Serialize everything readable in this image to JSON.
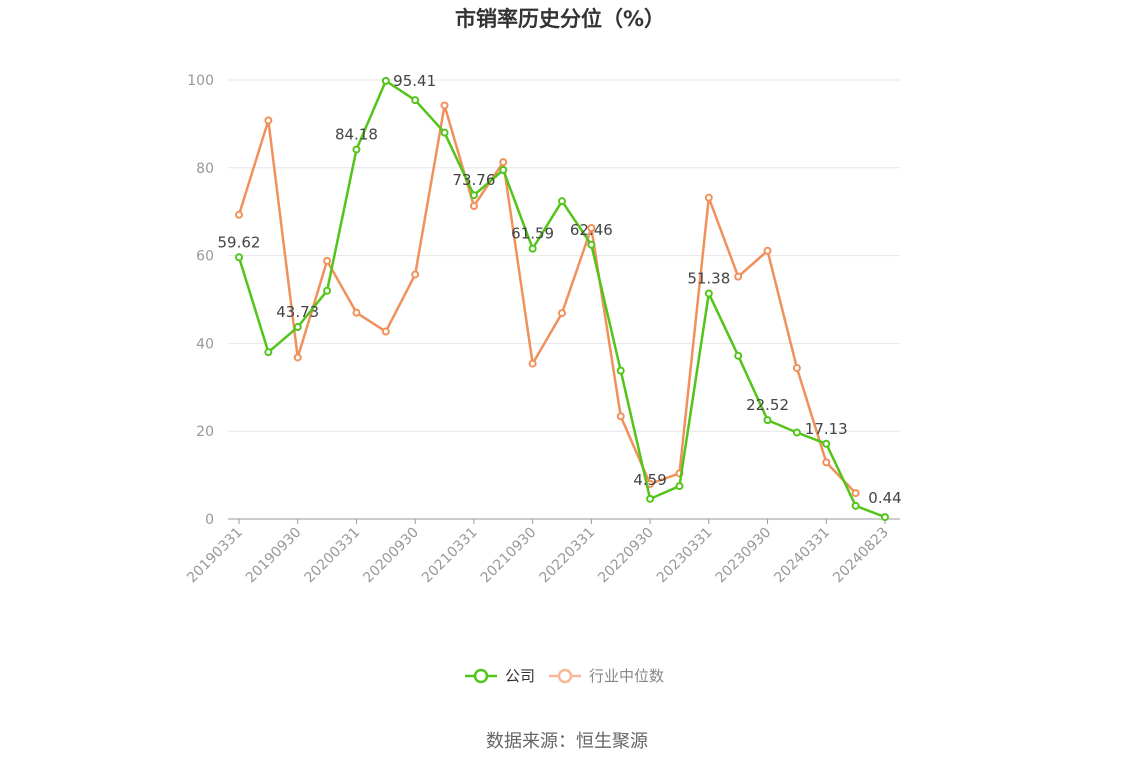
{
  "chart_data": {
    "type": "line",
    "title": "市销率历史分位（%）",
    "source": "数据来源：恒生聚源",
    "xlabel": "",
    "ylabel": "",
    "ylim": [
      0,
      100
    ],
    "yticks": [
      0,
      20,
      40,
      60,
      80,
      100
    ],
    "grid": true,
    "legend_position": "bottom",
    "x": [
      "20190331",
      "20190630",
      "20190930",
      "20191231",
      "20200331",
      "20200630",
      "20200930",
      "20201231",
      "20210331",
      "20210630",
      "20210930",
      "20211231",
      "20220331",
      "20220630",
      "20220930",
      "20221231",
      "20230331",
      "20230630",
      "20230930",
      "20231231",
      "20240331",
      "20240630",
      "20240823"
    ],
    "xtick_labels": [
      "20190331",
      "20190930",
      "20200331",
      "20200930",
      "20210331",
      "20210930",
      "20220331",
      "20220930",
      "20230331",
      "20230930",
      "20240331",
      "20240823"
    ],
    "series": [
      {
        "name": "公司",
        "color": "#52c41a",
        "values": [
          59.62,
          38.0,
          43.73,
          52.0,
          84.18,
          99.8,
          95.41,
          88.0,
          73.76,
          79.5,
          61.59,
          72.4,
          62.46,
          33.8,
          4.59,
          7.5,
          51.38,
          37.2,
          22.52,
          19.7,
          17.13,
          3.0,
          0.44
        ],
        "labeled_points": [
          {
            "index": 0,
            "label": "59.62"
          },
          {
            "index": 2,
            "label": "43.73"
          },
          {
            "index": 4,
            "label": "84.18"
          },
          {
            "index": 6,
            "label": "95.41"
          },
          {
            "index": 8,
            "label": "73.76"
          },
          {
            "index": 10,
            "label": "61.59"
          },
          {
            "index": 12,
            "label": "62.46"
          },
          {
            "index": 14,
            "label": "4.59"
          },
          {
            "index": 16,
            "label": "51.38"
          },
          {
            "index": 18,
            "label": "22.52"
          },
          {
            "index": 20,
            "label": "17.13"
          },
          {
            "index": 22,
            "label": "0.44"
          }
        ]
      },
      {
        "name": "行业中位数",
        "color": "#f0915b",
        "legend_color": "#f7b89a",
        "values": [
          69.3,
          90.8,
          36.8,
          58.8,
          47.0,
          42.7,
          55.7,
          94.2,
          71.3,
          81.3,
          35.4,
          46.9,
          66.3,
          23.4,
          8.0,
          10.4,
          73.2,
          55.2,
          61.1,
          34.4,
          12.9,
          5.9,
          null
        ]
      }
    ]
  }
}
